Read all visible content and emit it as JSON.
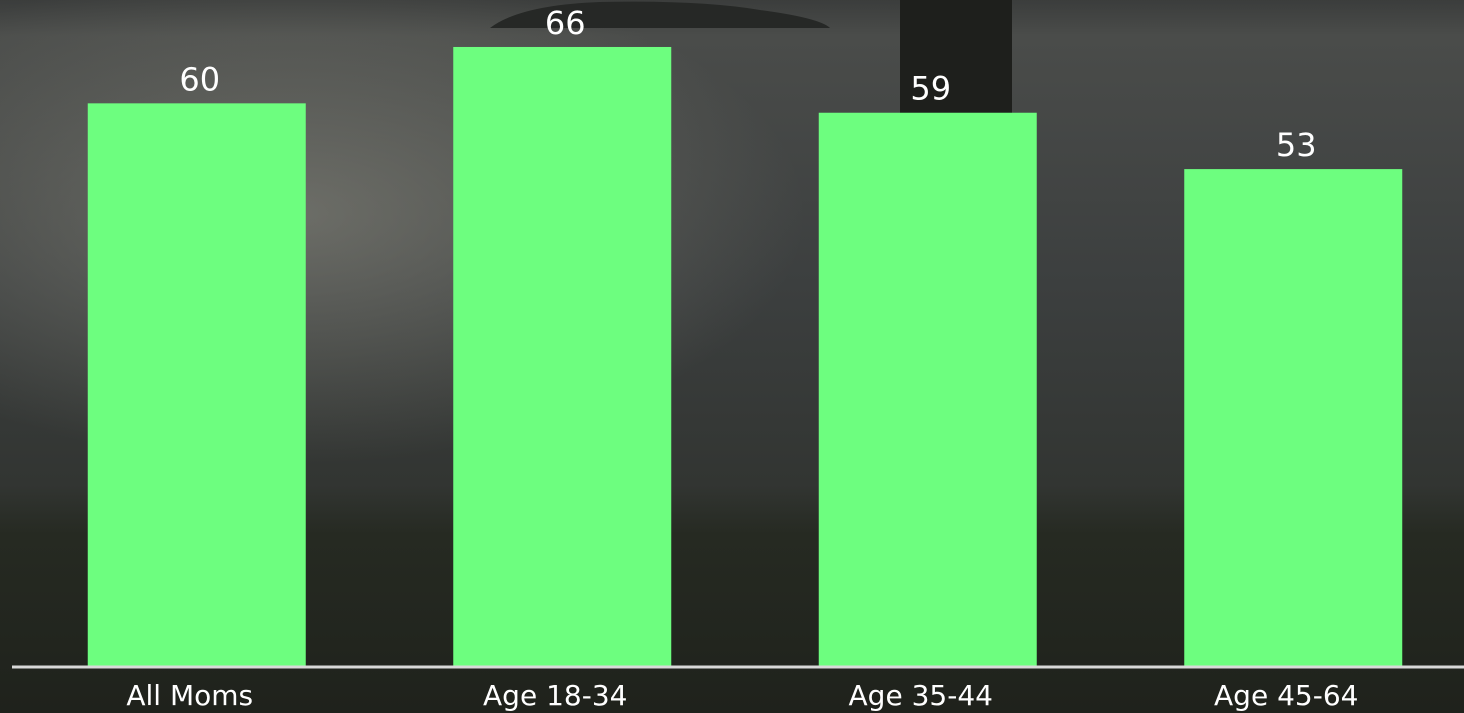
{
  "chart_data": {
    "type": "bar",
    "categories": [
      "All Moms",
      "Age 18-34",
      "Age 35-44",
      "Age 45-64"
    ],
    "values": [
      60,
      66,
      59,
      53
    ],
    "color": "#6dfe7f",
    "ylim": [
      0,
      71
    ]
  }
}
